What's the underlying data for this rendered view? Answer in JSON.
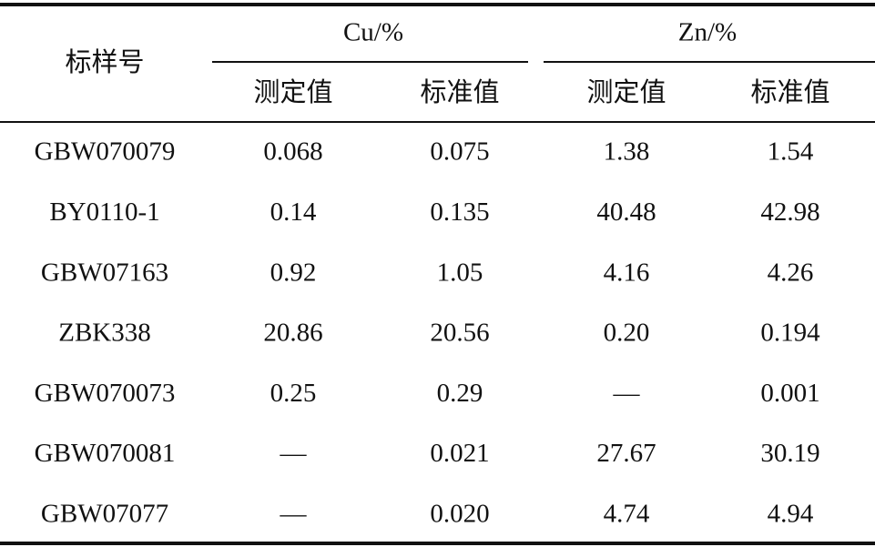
{
  "table": {
    "header": {
      "sample": "标样号",
      "groups": [
        {
          "name": "Cu/%",
          "columns": [
            "测定值",
            "标准值"
          ]
        },
        {
          "name": "Zn/%",
          "columns": [
            "测定值",
            "标准值"
          ]
        }
      ]
    },
    "rows": [
      [
        "GBW070079",
        "0.068",
        "0.075",
        "1.38",
        "1.54"
      ],
      [
        "BY0110-1",
        "0.14",
        "0.135",
        "40.48",
        "42.98"
      ],
      [
        "GBW07163",
        "0.92",
        "1.05",
        "4.16",
        "4.26"
      ],
      [
        "ZBK338",
        "20.86",
        "20.56",
        "0.20",
        "0.194"
      ],
      [
        "GBW070073",
        "0.25",
        "0.29",
        "—",
        "0.001"
      ],
      [
        "GBW070081",
        "—",
        "0.021",
        "27.67",
        "30.19"
      ],
      [
        "GBW07077",
        "—",
        "0.020",
        "4.74",
        "4.94"
      ]
    ]
  }
}
